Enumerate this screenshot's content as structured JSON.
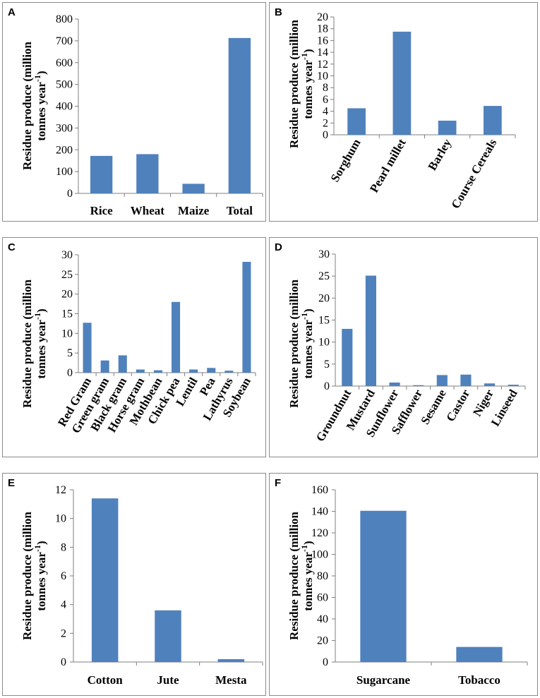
{
  "chart_data": [
    {
      "panel": "A",
      "type": "bar",
      "ylabel_line1": "Residue produce (million",
      "ylabel_line2": "tonnes year",
      "ylabel_sup": "-1",
      "ylabel_close": ")",
      "categories": [
        "Rice",
        "Wheat",
        "Maize",
        "Total"
      ],
      "values": [
        172,
        180,
        44,
        713
      ],
      "ylim": [
        0,
        800
      ],
      "yticks": [
        0,
        100,
        200,
        300,
        400,
        500,
        600,
        700,
        800
      ],
      "tick_labels": [
        "0",
        "100",
        "200",
        "300",
        "400",
        "500",
        "600",
        "700",
        "800"
      ],
      "rotated": false
    },
    {
      "panel": "B",
      "type": "bar",
      "ylabel_line1": "Residue produce (million",
      "ylabel_line2": "tonnes year",
      "ylabel_sup": "-1",
      "ylabel_close": ")",
      "categories": [
        "Sorghum",
        "Pearl millet",
        "Barley",
        "Course Cereals"
      ],
      "values": [
        4.5,
        17.5,
        2.4,
        4.9
      ],
      "ylim": [
        0,
        20
      ],
      "yticks": [
        0,
        2,
        4,
        6,
        8,
        10,
        12,
        14,
        16,
        18,
        20
      ],
      "tick_labels": [
        "0",
        "2",
        "4",
        "6",
        "8",
        "10",
        "12",
        "14",
        "16",
        "18",
        "20"
      ],
      "rotated": true
    },
    {
      "panel": "C",
      "type": "bar",
      "ylabel_line1": "Residue produce (million",
      "ylabel_line2": "tonnes year",
      "ylabel_sup": "-1",
      "ylabel_close": ")",
      "categories": [
        "Red Gram",
        "Green gram",
        "Black gram",
        "Horse gram",
        "Mothbean",
        "Chick pea",
        "Lentil",
        "Pea",
        "Lathyrus",
        "Soybean"
      ],
      "values": [
        12.7,
        3.1,
        4.4,
        0.8,
        0.6,
        18.0,
        0.8,
        1.2,
        0.5,
        28.2
      ],
      "ylim": [
        0,
        30
      ],
      "yticks": [
        0,
        5,
        10,
        15,
        20,
        25,
        30
      ],
      "tick_labels": [
        "0",
        "5",
        "10",
        "15",
        "20",
        "25",
        "30"
      ],
      "rotated": true
    },
    {
      "panel": "D",
      "type": "bar",
      "ylabel_line1": "Residue produce (million",
      "ylabel_line2": "tonnes year",
      "ylabel_sup": "-1",
      "ylabel_close": ")",
      "categories": [
        "Groundnut",
        "Mustard",
        "Sunflower",
        "Safflower",
        "Sesame",
        "Castor",
        "Niger",
        "Linseed"
      ],
      "values": [
        13.0,
        25.1,
        0.8,
        0.2,
        2.5,
        2.6,
        0.6,
        0.3
      ],
      "ylim": [
        0,
        30
      ],
      "yticks": [
        0,
        5,
        10,
        15,
        20,
        25,
        30
      ],
      "tick_labels": [
        "0",
        "5",
        "10",
        "15",
        "20",
        "25",
        "30"
      ],
      "rotated": true
    },
    {
      "panel": "E",
      "type": "bar",
      "ylabel_line1": "Residue produce (million",
      "ylabel_line2": "tonnes year",
      "ylabel_sup": "-1",
      "ylabel_close": ")",
      "categories": [
        "Cotton",
        "Jute",
        "Mesta"
      ],
      "values": [
        11.4,
        3.6,
        0.2
      ],
      "ylim": [
        0,
        12
      ],
      "yticks": [
        0,
        2,
        4,
        6,
        8,
        10,
        12
      ],
      "tick_labels": [
        "0",
        "2",
        "4",
        "6",
        "8",
        "10",
        "12"
      ],
      "rotated": false
    },
    {
      "panel": "F",
      "type": "bar",
      "ylabel_line1": "Residue produce (million",
      "ylabel_line2": "tonnes year",
      "ylabel_sup": "-1",
      "ylabel_close": ")",
      "categories": [
        "Sugarcane",
        "Tobacco"
      ],
      "values": [
        140.5,
        14
      ],
      "ylim": [
        0,
        160
      ],
      "yticks": [
        0,
        20,
        40,
        60,
        80,
        100,
        120,
        140,
        160
      ],
      "tick_labels": [
        "0",
        "20",
        "40",
        "60",
        "80",
        "100",
        "120",
        "140",
        "160"
      ],
      "rotated": false
    }
  ],
  "colors": {
    "bar": "#4f81bd",
    "axis": "#7f7f7f",
    "frame": "#8a8a8a"
  }
}
